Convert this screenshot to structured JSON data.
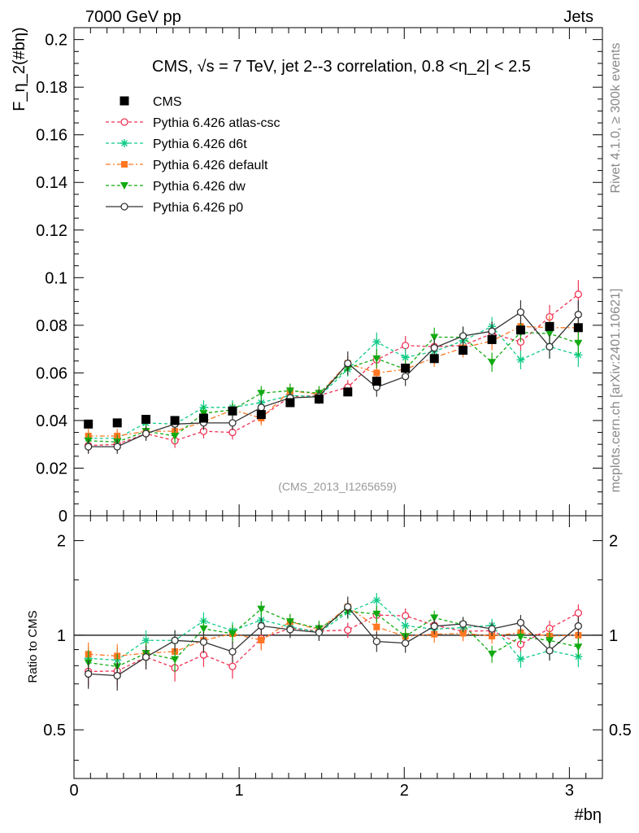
{
  "header": {
    "left": "7000 GeV pp",
    "right": "Jets"
  },
  "side": {
    "rivet": "Rivet 4.1.0, ≥ 300k events",
    "mcplots": "mcplots.cern.ch [arXiv:2401.10621]"
  },
  "chart_data": {
    "type": "scatter",
    "title": "CMS, √s = 7 TeV, jet 2--3 correlation, 0.8 <η_2| < 2.5",
    "ylabel": "F_η_2(#bη)",
    "xlabel": "#bη",
    "ratio_ylabel": "Ratio to CMS",
    "watermark": "(CMS_2013_I1265659)",
    "xlim": [
      0,
      3.2
    ],
    "ylim": [
      0,
      0.205
    ],
    "ratio_ylim": [
      0.35,
      2.4
    ],
    "yticks": [
      "0",
      "0.02",
      "0.04",
      "0.06",
      "0.08",
      "0.1",
      "0.12",
      "0.14",
      "0.16",
      "0.18",
      "0.2"
    ],
    "xticks": [
      "0",
      "1",
      "2",
      "3"
    ],
    "ratio_yticks": [
      "0.5",
      "1",
      "2"
    ],
    "x": [
      0.087,
      0.262,
      0.436,
      0.611,
      0.785,
      0.96,
      1.134,
      1.309,
      1.484,
      1.658,
      1.833,
      2.007,
      2.182,
      2.356,
      2.531,
      2.705,
      2.88,
      3.054
    ],
    "series": [
      {
        "name": "CMS",
        "style": "data",
        "color": "#000000",
        "values": [
          0.0385,
          0.039,
          0.0405,
          0.04,
          0.041,
          0.044,
          0.0425,
          0.0475,
          0.049,
          0.052,
          0.0565,
          0.062,
          0.066,
          0.0695,
          0.074,
          0.078,
          0.0795,
          0.079
        ]
      },
      {
        "name": "Pythia 6.426 atlas-csc",
        "style": "mc",
        "marker": "circle-open",
        "dash": "4 3",
        "color": "#ee3355",
        "values": [
          0.0295,
          0.03,
          0.0345,
          0.0315,
          0.0355,
          0.035,
          0.0415,
          0.05,
          0.0505,
          0.054,
          0.0655,
          0.0715,
          0.071,
          0.0715,
          0.0765,
          0.073,
          0.0835,
          0.093
        ],
        "errors": [
          0.003,
          0.003,
          0.003,
          0.003,
          0.003,
          0.003,
          0.003,
          0.003,
          0.003,
          0.003,
          0.004,
          0.004,
          0.004,
          0.004,
          0.004,
          0.004,
          0.005,
          0.006
        ]
      },
      {
        "name": "Pythia 6.426 d6t",
        "style": "mc",
        "marker": "star",
        "dash": "4 3",
        "color": "#11cc88",
        "values": [
          0.0325,
          0.0325,
          0.039,
          0.0385,
          0.0455,
          0.0455,
          0.0475,
          0.0505,
          0.05,
          0.0615,
          0.073,
          0.0665,
          0.069,
          0.0735,
          0.0795,
          0.0655,
          0.071,
          0.0675
        ],
        "errors": [
          0.003,
          0.003,
          0.003,
          0.003,
          0.003,
          0.003,
          0.003,
          0.003,
          0.003,
          0.003,
          0.004,
          0.004,
          0.004,
          0.004,
          0.004,
          0.004,
          0.005,
          0.005
        ]
      },
      {
        "name": "Pythia 6.426 default",
        "style": "mc",
        "marker": "square",
        "dash": "6 3 2 3",
        "color": "#ff7722",
        "values": [
          0.0335,
          0.0335,
          0.0355,
          0.0355,
          0.0395,
          0.0445,
          0.041,
          0.0525,
          0.051,
          0.064,
          0.06,
          0.0615,
          0.0665,
          0.0705,
          0.0735,
          0.0795,
          0.079,
          0.079
        ],
        "errors": [
          0.003,
          0.003,
          0.003,
          0.003,
          0.003,
          0.003,
          0.003,
          0.003,
          0.003,
          0.003,
          0.004,
          0.004,
          0.004,
          0.004,
          0.004,
          0.004,
          0.005,
          0.005
        ]
      },
      {
        "name": "Pythia 6.426 dw",
        "style": "mc",
        "marker": "triangle-down",
        "dash": "4 3",
        "color": "#11aa11",
        "values": [
          0.0315,
          0.031,
          0.0355,
          0.0335,
          0.043,
          0.0445,
          0.0515,
          0.0525,
          0.0515,
          0.062,
          0.066,
          0.0615,
          0.075,
          0.075,
          0.0645,
          0.077,
          0.0765,
          0.0725
        ],
        "errors": [
          0.003,
          0.003,
          0.003,
          0.003,
          0.003,
          0.003,
          0.003,
          0.003,
          0.003,
          0.003,
          0.004,
          0.004,
          0.004,
          0.004,
          0.004,
          0.004,
          0.005,
          0.005
        ]
      },
      {
        "name": "Pythia 6.426 p0",
        "style": "mc",
        "marker": "circle-open",
        "dash": "",
        "color": "#333333",
        "values": [
          0.029,
          0.029,
          0.0345,
          0.0385,
          0.039,
          0.039,
          0.0455,
          0.0495,
          0.05,
          0.064,
          0.054,
          0.0585,
          0.0705,
          0.0755,
          0.0775,
          0.0855,
          0.071,
          0.0845
        ],
        "errors": [
          0.003,
          0.003,
          0.003,
          0.003,
          0.003,
          0.003,
          0.003,
          0.003,
          0.003,
          0.005,
          0.004,
          0.004,
          0.004,
          0.004,
          0.004,
          0.005,
          0.005,
          0.006
        ]
      }
    ]
  }
}
